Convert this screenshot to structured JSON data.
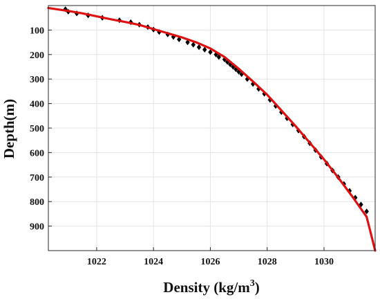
{
  "chart_data": {
    "type": "line",
    "xlabel": "Density (kg/m3)",
    "xlabel_parts": {
      "main": "Density (kg/m",
      "sup": "3",
      "close": ")"
    },
    "ylabel": "Depth(m)",
    "xlim": [
      1020.3,
      1031.8
    ],
    "ylim": [
      0,
      1000
    ],
    "y_inverted": true,
    "x_ticks": [
      1022,
      1024,
      1026,
      1028,
      1030
    ],
    "y_ticks": [
      100,
      200,
      300,
      400,
      500,
      600,
      700,
      800,
      900
    ],
    "grid": true,
    "legend": "none",
    "series": [
      {
        "style": "markers",
        "marker": "diamond",
        "color": "#000000",
        "x": [
          1020.9,
          1021.0,
          1021.3,
          1021.7,
          1022.2,
          1022.8,
          1023.2,
          1023.5,
          1023.8,
          1024.0,
          1024.2,
          1024.5,
          1024.7,
          1024.9,
          1025.2,
          1025.4,
          1025.6,
          1025.8,
          1026.0,
          1026.2,
          1026.3,
          1026.5,
          1026.6,
          1026.7,
          1026.8,
          1026.9,
          1027.0,
          1027.1,
          1027.3,
          1027.5,
          1027.7,
          1027.9,
          1028.1,
          1028.3,
          1028.5,
          1028.7,
          1028.9,
          1029.1,
          1029.3,
          1029.5,
          1029.7,
          1029.9,
          1030.1,
          1030.3,
          1030.5,
          1030.7,
          1030.9,
          1031.1,
          1031.3,
          1031.5
        ],
        "y": [
          15,
          25,
          32,
          40,
          50,
          60,
          68,
          78,
          88,
          98,
          108,
          118,
          128,
          138,
          150,
          160,
          170,
          180,
          190,
          200,
          210,
          220,
          230,
          240,
          250,
          260,
          270,
          280,
          300,
          320,
          340,
          360,
          385,
          410,
          435,
          460,
          485,
          510,
          535,
          562,
          590,
          618,
          645,
          673,
          700,
          728,
          756,
          784,
          812,
          840
        ]
      },
      {
        "style": "line",
        "color": "#dd1111",
        "x": [
          1020.3,
          1021.0,
          1021.5,
          1022.0,
          1022.5,
          1023.0,
          1023.5,
          1024.0,
          1024.5,
          1025.0,
          1025.5,
          1026.0,
          1026.5,
          1027.0,
          1027.5,
          1028.0,
          1028.5,
          1029.0,
          1029.5,
          1030.0,
          1030.5,
          1031.0,
          1031.5,
          1031.8
        ],
        "y": [
          10,
          22,
          32,
          44,
          56,
          67,
          79,
          96,
          113,
          130,
          150,
          175,
          210,
          258,
          310,
          364,
          428,
          492,
          560,
          628,
          702,
          780,
          862,
          1000
        ]
      }
    ]
  }
}
